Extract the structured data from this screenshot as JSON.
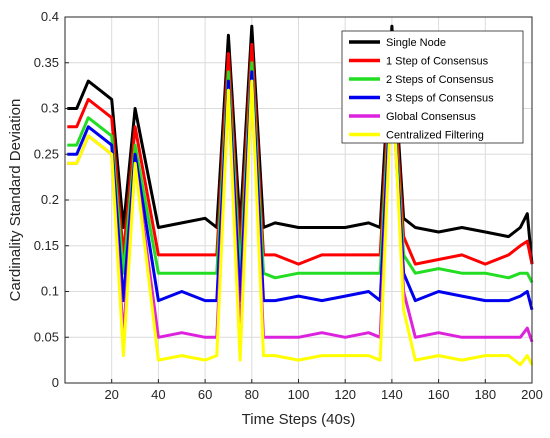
{
  "chart_data": {
    "type": "line",
    "title": "",
    "xlabel": "Time Steps (40s)",
    "ylabel": "Cardinality Standard Deviation",
    "xlim": [
      0,
      200
    ],
    "ylim": [
      0,
      0.4
    ],
    "x_ticks": [
      20,
      40,
      60,
      80,
      100,
      120,
      140,
      160,
      180,
      200
    ],
    "y_ticks": [
      0,
      0.05,
      0.1,
      0.15,
      0.2,
      0.25,
      0.3,
      0.35,
      0.4
    ],
    "y_tick_labels": [
      "0",
      "0.05",
      "0.1",
      "0.15",
      "0.2",
      "0.25",
      "0.3",
      "0.35",
      "0.4"
    ],
    "grid": true,
    "legend_position": "top-right",
    "x": [
      1,
      5,
      10,
      15,
      20,
      25,
      30,
      40,
      50,
      60,
      65,
      70,
      75,
      80,
      85,
      90,
      100,
      110,
      120,
      130,
      135,
      140,
      142,
      145,
      150,
      160,
      170,
      180,
      190,
      195,
      198,
      200
    ],
    "series": [
      {
        "name": "Single Node",
        "color": "#000000",
        "values": [
          0.3,
          0.3,
          0.33,
          0.32,
          0.31,
          0.17,
          0.3,
          0.17,
          0.175,
          0.18,
          0.17,
          0.38,
          0.17,
          0.39,
          0.17,
          0.175,
          0.17,
          0.17,
          0.17,
          0.175,
          0.17,
          0.39,
          0.3,
          0.18,
          0.17,
          0.165,
          0.17,
          0.165,
          0.16,
          0.17,
          0.185,
          0.13
        ]
      },
      {
        "name": "1 Step of Consensus",
        "color": "#ff0000",
        "values": [
          0.28,
          0.28,
          0.31,
          0.3,
          0.29,
          0.14,
          0.28,
          0.14,
          0.14,
          0.14,
          0.14,
          0.36,
          0.14,
          0.37,
          0.14,
          0.14,
          0.13,
          0.14,
          0.14,
          0.14,
          0.14,
          0.37,
          0.28,
          0.16,
          0.13,
          0.135,
          0.14,
          0.13,
          0.14,
          0.15,
          0.155,
          0.13
        ]
      },
      {
        "name": "2 Steps of Consensus",
        "color": "#22dd22",
        "values": [
          0.26,
          0.26,
          0.29,
          0.28,
          0.27,
          0.12,
          0.26,
          0.12,
          0.12,
          0.12,
          0.12,
          0.34,
          0.12,
          0.35,
          0.12,
          0.115,
          0.12,
          0.12,
          0.12,
          0.12,
          0.12,
          0.35,
          0.26,
          0.14,
          0.12,
          0.125,
          0.12,
          0.12,
          0.115,
          0.12,
          0.12,
          0.11
        ]
      },
      {
        "name": "3 Steps of Consensus",
        "color": "#0000ee",
        "values": [
          0.25,
          0.25,
          0.28,
          0.27,
          0.26,
          0.09,
          0.25,
          0.09,
          0.1,
          0.09,
          0.09,
          0.33,
          0.09,
          0.34,
          0.09,
          0.09,
          0.095,
          0.09,
          0.095,
          0.1,
          0.09,
          0.34,
          0.25,
          0.12,
          0.09,
          0.1,
          0.095,
          0.09,
          0.09,
          0.095,
          0.1,
          0.08
        ]
      },
      {
        "name": "Global Consensus",
        "color": "#dd22dd",
        "values": [
          0.24,
          0.24,
          0.27,
          0.26,
          0.25,
          0.05,
          0.24,
          0.05,
          0.055,
          0.05,
          0.05,
          0.32,
          0.05,
          0.33,
          0.05,
          0.05,
          0.05,
          0.055,
          0.05,
          0.055,
          0.05,
          0.33,
          0.24,
          0.1,
          0.05,
          0.055,
          0.05,
          0.05,
          0.05,
          0.05,
          0.06,
          0.045
        ]
      },
      {
        "name": "Centralized Filtering",
        "color": "#ffff00",
        "values": [
          0.24,
          0.24,
          0.27,
          0.26,
          0.25,
          0.03,
          0.24,
          0.025,
          0.03,
          0.025,
          0.03,
          0.32,
          0.025,
          0.33,
          0.03,
          0.03,
          0.025,
          0.03,
          0.03,
          0.03,
          0.025,
          0.33,
          0.24,
          0.08,
          0.025,
          0.03,
          0.025,
          0.03,
          0.03,
          0.02,
          0.03,
          0.02
        ]
      }
    ]
  }
}
